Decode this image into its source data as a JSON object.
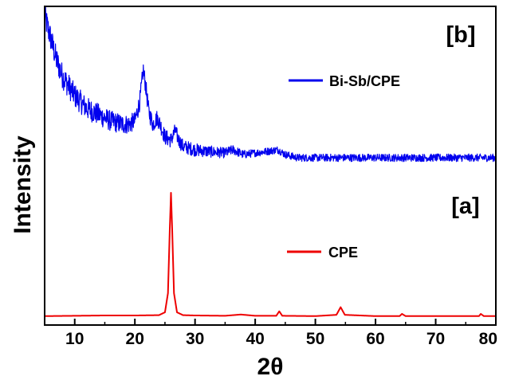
{
  "chart_data": {
    "type": "line",
    "title": "",
    "xlabel": "2θ",
    "ylabel": "Intensity",
    "xlim": [
      5,
      80
    ],
    "ylim": [
      0,
      1
    ],
    "x_ticks": [
      10,
      20,
      30,
      40,
      50,
      60,
      70,
      80
    ],
    "y_ticks_shown": false,
    "grid": false,
    "legend": "inline",
    "panel_labels": [
      "[b]",
      "[a]"
    ],
    "series": [
      {
        "name": "Bi-Sb/CPE",
        "panel": "[b]",
        "color": "#0000ee",
        "noisy": true,
        "x": [
          5,
          6,
          7,
          8,
          10,
          12,
          14,
          16,
          18,
          19,
          20,
          20.8,
          21.4,
          21.8,
          22.3,
          23,
          23.7,
          24.2,
          25,
          26,
          26.7,
          27.3,
          28,
          30,
          32,
          35,
          36.3,
          38,
          40,
          42,
          43.8,
          45,
          47,
          50,
          55,
          60,
          65,
          70,
          75,
          80
        ],
        "y": [
          0.97,
          0.9,
          0.83,
          0.78,
          0.72,
          0.68,
          0.66,
          0.64,
          0.63,
          0.63,
          0.64,
          0.7,
          0.8,
          0.75,
          0.67,
          0.63,
          0.65,
          0.63,
          0.59,
          0.58,
          0.61,
          0.58,
          0.56,
          0.55,
          0.545,
          0.54,
          0.55,
          0.535,
          0.54,
          0.545,
          0.55,
          0.535,
          0.525,
          0.525,
          0.525,
          0.525,
          0.525,
          0.525,
          0.525,
          0.525
        ]
      },
      {
        "name": "CPE",
        "panel": "[a]",
        "color": "#ee0000",
        "noisy": false,
        "x": [
          5,
          10,
          15,
          20,
          24,
          25,
          25.5,
          25.8,
          26.0,
          26.2,
          26.5,
          27,
          28,
          30,
          35,
          37.6,
          40,
          43.5,
          44,
          44.5,
          50,
          53.5,
          54.2,
          54.9,
          60,
          64,
          64.4,
          65,
          70,
          77.2,
          77.5,
          78,
          80
        ],
        "y": [
          0.028,
          0.029,
          0.03,
          0.03,
          0.031,
          0.04,
          0.1,
          0.3,
          0.415,
          0.3,
          0.1,
          0.04,
          0.031,
          0.03,
          0.029,
          0.033,
          0.029,
          0.029,
          0.043,
          0.029,
          0.028,
          0.032,
          0.056,
          0.032,
          0.028,
          0.028,
          0.035,
          0.028,
          0.028,
          0.028,
          0.035,
          0.028,
          0.028
        ]
      }
    ]
  }
}
